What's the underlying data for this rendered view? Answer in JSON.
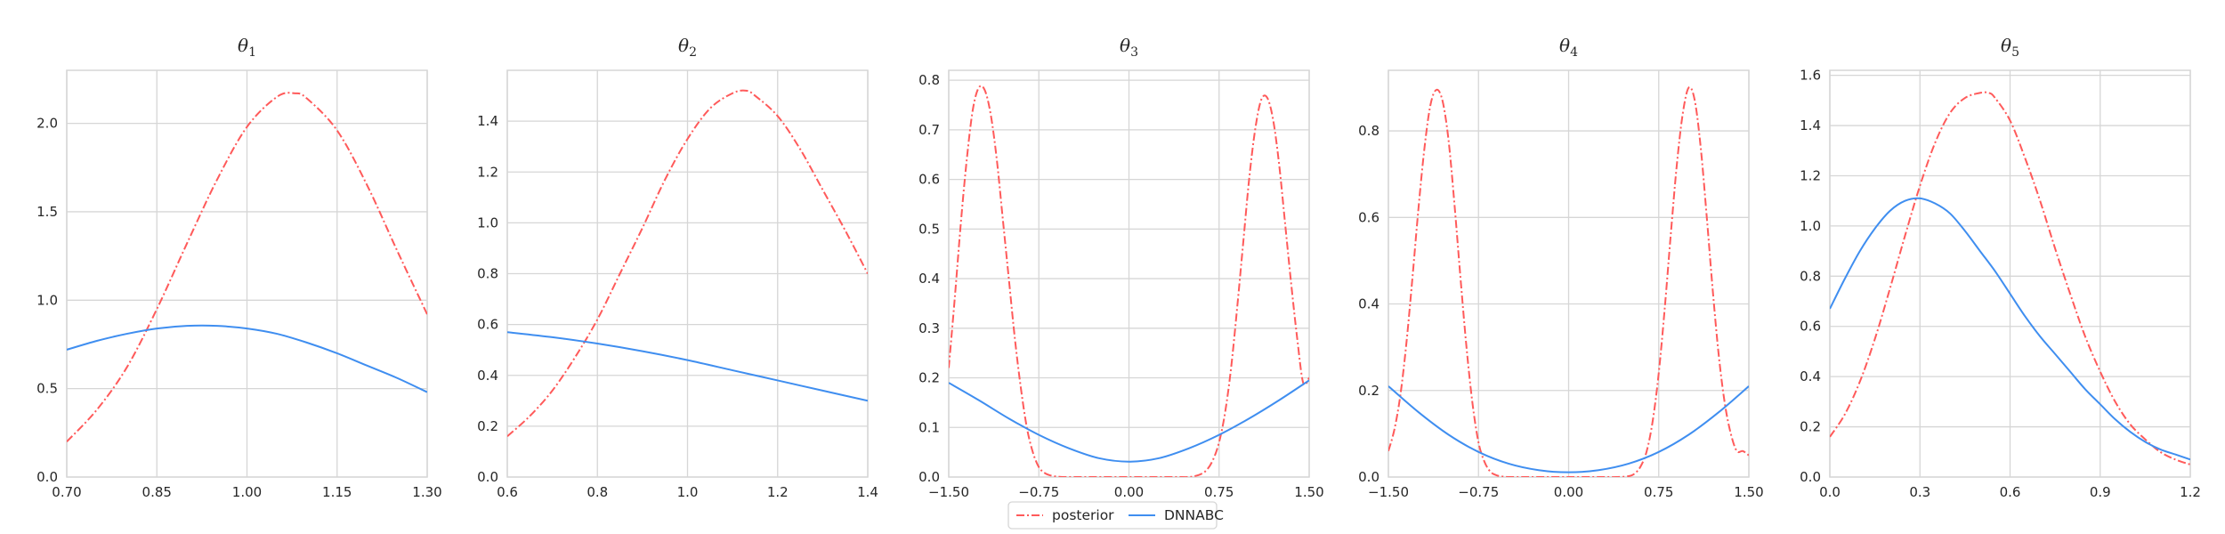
{
  "colors": {
    "posterior": "#ff5a5a",
    "dnnabc": "#3f8ef0",
    "grid": "#d6d6d6",
    "text": "#262626"
  },
  "legend": {
    "posterior_label": "posterior",
    "dnnabc_label": "DNNABC",
    "placement": "bottom-center"
  },
  "chart_data": [
    {
      "type": "line",
      "title_base": "θ",
      "title_sub": "1",
      "xlim": [
        0.7,
        1.3
      ],
      "ylim": [
        0.0,
        2.3
      ],
      "xticks": [
        0.7,
        0.85,
        1.0,
        1.15,
        1.3
      ],
      "xtick_labels": [
        "0.70",
        "0.85",
        "1.00",
        "1.15",
        "1.30"
      ],
      "yticks": [
        0.0,
        0.5,
        1.0,
        1.5,
        2.0
      ],
      "ytick_labels": [
        "0.0",
        "0.5",
        "1.0",
        "1.5",
        "2.0"
      ],
      "grid": true,
      "series": [
        {
          "name": "posterior",
          "x": [
            0.7,
            0.75,
            0.8,
            0.85,
            0.9,
            0.95,
            1.0,
            1.05,
            1.08,
            1.1,
            1.15,
            1.2,
            1.25,
            1.3
          ],
          "y": [
            0.2,
            0.38,
            0.62,
            0.95,
            1.32,
            1.68,
            1.98,
            2.15,
            2.17,
            2.14,
            1.96,
            1.65,
            1.28,
            0.92
          ]
        },
        {
          "name": "DNNABC",
          "x": [
            0.7,
            0.75,
            0.8,
            0.85,
            0.9,
            0.95,
            1.0,
            1.05,
            1.1,
            1.15,
            1.2,
            1.25,
            1.3
          ],
          "y": [
            0.72,
            0.77,
            0.81,
            0.84,
            0.855,
            0.855,
            0.84,
            0.81,
            0.76,
            0.7,
            0.63,
            0.56,
            0.48
          ]
        }
      ]
    },
    {
      "type": "line",
      "title_base": "θ",
      "title_sub": "2",
      "xlim": [
        0.6,
        1.4
      ],
      "ylim": [
        0.0,
        1.6
      ],
      "xticks": [
        0.6,
        0.8,
        1.0,
        1.2,
        1.4
      ],
      "xtick_labels": [
        "0.6",
        "0.8",
        "1.0",
        "1.2",
        "1.4"
      ],
      "yticks": [
        0.0,
        0.2,
        0.4,
        0.6,
        0.8,
        1.0,
        1.2,
        1.4
      ],
      "ytick_labels": [
        "0.0",
        "0.2",
        "0.4",
        "0.6",
        "0.8",
        "1.0",
        "1.2",
        "1.4"
      ],
      "grid": true,
      "series": [
        {
          "name": "posterior",
          "x": [
            0.6,
            0.65,
            0.7,
            0.75,
            0.8,
            0.85,
            0.9,
            0.95,
            1.0,
            1.05,
            1.1,
            1.13,
            1.15,
            1.2,
            1.25,
            1.3,
            1.35,
            1.4
          ],
          "y": [
            0.16,
            0.24,
            0.34,
            0.47,
            0.62,
            0.8,
            0.98,
            1.17,
            1.33,
            1.45,
            1.51,
            1.52,
            1.5,
            1.42,
            1.29,
            1.13,
            0.97,
            0.8
          ]
        },
        {
          "name": "DNNABC",
          "x": [
            0.6,
            0.7,
            0.8,
            0.9,
            1.0,
            1.1,
            1.2,
            1.3,
            1.4
          ],
          "y": [
            0.57,
            0.55,
            0.525,
            0.495,
            0.46,
            0.42,
            0.38,
            0.34,
            0.3
          ]
        }
      ]
    },
    {
      "type": "line",
      "title_base": "θ",
      "title_sub": "3",
      "xlim": [
        -1.5,
        1.5
      ],
      "ylim": [
        0.0,
        0.82
      ],
      "xticks": [
        -1.5,
        -0.75,
        0.0,
        0.75,
        1.5
      ],
      "xtick_labels": [
        "−1.50",
        "−0.75",
        "0.00",
        "0.75",
        "1.50"
      ],
      "yticks": [
        0.0,
        0.1,
        0.2,
        0.3,
        0.4,
        0.5,
        0.6,
        0.7,
        0.8
      ],
      "ytick_labels": [
        "0.0",
        "0.1",
        "0.2",
        "0.3",
        "0.4",
        "0.5",
        "0.6",
        "0.7",
        "0.8"
      ],
      "grid": true,
      "series": [
        {
          "name": "posterior",
          "x": [
            -1.5,
            -1.45,
            -1.4,
            -1.35,
            -1.3,
            -1.25,
            -1.2,
            -1.15,
            -1.1,
            -1.05,
            -1.0,
            -0.95,
            -0.9,
            -0.85,
            -0.8,
            -0.75,
            -0.7,
            -0.65,
            -0.6,
            -0.55,
            -0.5,
            -0.4,
            -0.3,
            -0.2,
            0.0,
            0.2,
            0.3,
            0.4,
            0.5,
            0.55,
            0.6,
            0.65,
            0.7,
            0.75,
            0.8,
            0.85,
            0.9,
            0.95,
            1.0,
            1.05,
            1.1,
            1.15,
            1.2,
            1.25,
            1.3,
            1.35,
            1.4,
            1.45,
            1.5
          ],
          "y": [
            0.22,
            0.36,
            0.51,
            0.64,
            0.74,
            0.785,
            0.78,
            0.73,
            0.64,
            0.52,
            0.4,
            0.28,
            0.18,
            0.1,
            0.05,
            0.02,
            0.008,
            0.003,
            0.001,
            0.0,
            0.0,
            0.0,
            0.0,
            0.0,
            0.0,
            0.0,
            0.0,
            0.0,
            0.0,
            0.002,
            0.006,
            0.015,
            0.035,
            0.07,
            0.13,
            0.22,
            0.34,
            0.47,
            0.6,
            0.7,
            0.76,
            0.765,
            0.72,
            0.63,
            0.51,
            0.39,
            0.28,
            0.19,
            0.2
          ]
        },
        {
          "name": "DNNABC",
          "x": [
            -1.5,
            -1.25,
            -1.0,
            -0.75,
            -0.5,
            -0.25,
            0.0,
            0.25,
            0.5,
            0.75,
            1.0,
            1.25,
            1.5
          ],
          "y": [
            0.19,
            0.155,
            0.118,
            0.085,
            0.058,
            0.038,
            0.031,
            0.038,
            0.058,
            0.085,
            0.118,
            0.155,
            0.195
          ]
        }
      ]
    },
    {
      "type": "line",
      "title_base": "θ",
      "title_sub": "4",
      "xlim": [
        -1.5,
        1.5
      ],
      "ylim": [
        0.0,
        0.94
      ],
      "xticks": [
        -1.5,
        -0.75,
        0.0,
        0.75,
        1.5
      ],
      "xtick_labels": [
        "−1.50",
        "−0.75",
        "0.00",
        "0.75",
        "1.50"
      ],
      "yticks": [
        0.0,
        0.2,
        0.4,
        0.6,
        0.8
      ],
      "ytick_labels": [
        "0.0",
        "0.2",
        "0.4",
        "0.6",
        "0.8"
      ],
      "grid": true,
      "series": [
        {
          "name": "posterior",
          "x": [
            -1.5,
            -1.45,
            -1.4,
            -1.35,
            -1.3,
            -1.25,
            -1.2,
            -1.15,
            -1.1,
            -1.05,
            -1.0,
            -0.95,
            -0.9,
            -0.85,
            -0.8,
            -0.75,
            -0.7,
            -0.65,
            -0.6,
            -0.55,
            -0.5,
            -0.4,
            -0.3,
            0.0,
            0.3,
            0.4,
            0.5,
            0.55,
            0.6,
            0.65,
            0.7,
            0.75,
            0.8,
            0.85,
            0.9,
            0.95,
            1.0,
            1.05,
            1.1,
            1.15,
            1.2,
            1.25,
            1.3,
            1.35,
            1.4,
            1.45,
            1.5
          ],
          "y": [
            0.06,
            0.11,
            0.19,
            0.31,
            0.46,
            0.62,
            0.76,
            0.86,
            0.895,
            0.87,
            0.78,
            0.63,
            0.46,
            0.3,
            0.17,
            0.08,
            0.035,
            0.012,
            0.004,
            0.001,
            0.0,
            0.0,
            0.0,
            0.0,
            0.0,
            0.0,
            0.002,
            0.008,
            0.025,
            0.06,
            0.13,
            0.24,
            0.39,
            0.56,
            0.72,
            0.84,
            0.9,
            0.87,
            0.76,
            0.6,
            0.43,
            0.28,
            0.17,
            0.1,
            0.06,
            0.06,
            0.05
          ]
        },
        {
          "name": "DNNABC",
          "x": [
            -1.5,
            -1.25,
            -1.0,
            -0.75,
            -0.5,
            -0.25,
            0.0,
            0.25,
            0.5,
            0.75,
            1.0,
            1.25,
            1.5
          ],
          "y": [
            0.21,
            0.15,
            0.098,
            0.058,
            0.031,
            0.016,
            0.011,
            0.016,
            0.031,
            0.058,
            0.098,
            0.15,
            0.21
          ]
        }
      ]
    },
    {
      "type": "line",
      "title_base": "θ",
      "title_sub": "5",
      "xlim": [
        0.0,
        1.2
      ],
      "ylim": [
        0.0,
        1.62
      ],
      "xticks": [
        0.0,
        0.3,
        0.6,
        0.9,
        1.2
      ],
      "xtick_labels": [
        "0.0",
        "0.3",
        "0.6",
        "0.9",
        "1.2"
      ],
      "yticks": [
        0.0,
        0.2,
        0.4,
        0.6,
        0.8,
        1.0,
        1.2,
        1.4,
        1.6
      ],
      "ytick_labels": [
        "0.0",
        "0.2",
        "0.4",
        "0.6",
        "0.8",
        "1.0",
        "1.2",
        "1.4",
        "1.6"
      ],
      "grid": true,
      "series": [
        {
          "name": "posterior",
          "x": [
            0.0,
            0.05,
            0.1,
            0.15,
            0.2,
            0.25,
            0.3,
            0.35,
            0.4,
            0.45,
            0.5,
            0.53,
            0.55,
            0.6,
            0.65,
            0.7,
            0.75,
            0.8,
            0.85,
            0.9,
            0.95,
            1.0,
            1.05,
            1.1,
            1.15,
            1.2
          ],
          "y": [
            0.16,
            0.25,
            0.38,
            0.55,
            0.75,
            0.96,
            1.16,
            1.33,
            1.45,
            1.51,
            1.53,
            1.53,
            1.51,
            1.42,
            1.27,
            1.1,
            0.91,
            0.73,
            0.56,
            0.42,
            0.3,
            0.21,
            0.15,
            0.1,
            0.07,
            0.05
          ]
        },
        {
          "name": "DNNABC",
          "x": [
            0.0,
            0.05,
            0.1,
            0.15,
            0.2,
            0.25,
            0.3,
            0.35,
            0.4,
            0.45,
            0.5,
            0.55,
            0.6,
            0.65,
            0.7,
            0.75,
            0.8,
            0.85,
            0.9,
            0.95,
            1.0,
            1.05,
            1.1,
            1.15,
            1.2
          ],
          "y": [
            0.67,
            0.79,
            0.9,
            0.99,
            1.06,
            1.1,
            1.11,
            1.09,
            1.05,
            0.98,
            0.9,
            0.82,
            0.73,
            0.64,
            0.56,
            0.49,
            0.42,
            0.35,
            0.29,
            0.23,
            0.18,
            0.14,
            0.11,
            0.09,
            0.07
          ]
        }
      ]
    }
  ]
}
